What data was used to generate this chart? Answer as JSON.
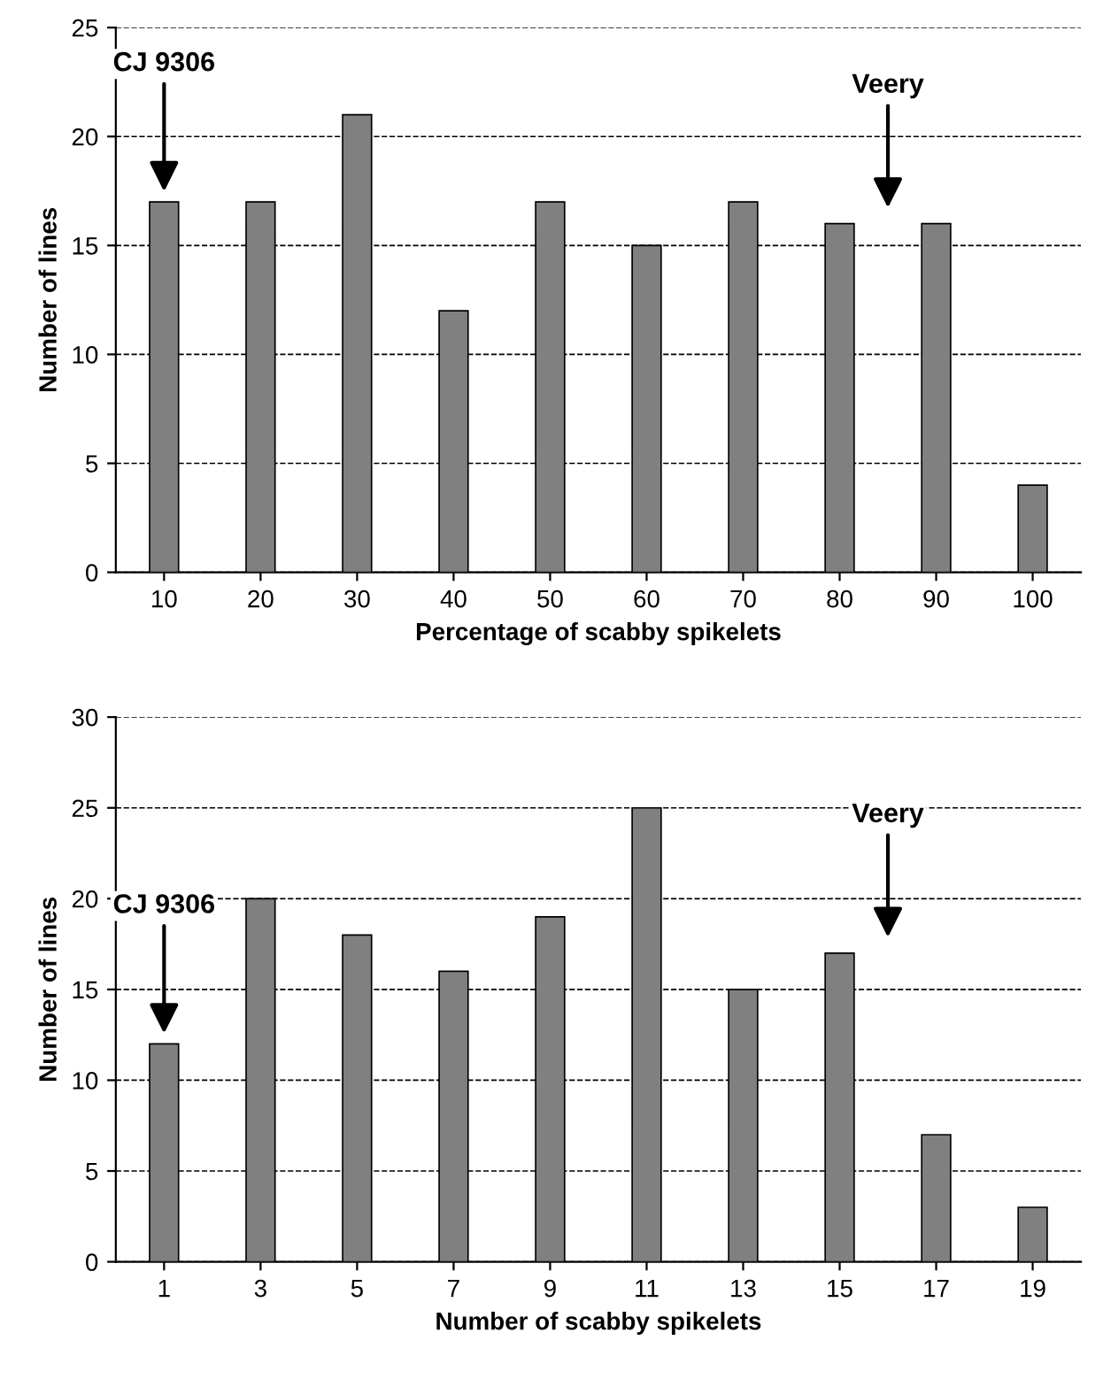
{
  "chart_data": [
    {
      "type": "bar",
      "xlabel": "Percentage of scabby spikelets",
      "ylabel": "Number of lines",
      "categories": [
        "10",
        "20",
        "30",
        "40",
        "50",
        "60",
        "70",
        "80",
        "90",
        "100"
      ],
      "values": [
        17,
        17,
        21,
        12,
        17,
        15,
        17,
        16,
        16,
        4
      ],
      "color": "#808080",
      "ylim": [
        0,
        25
      ],
      "yticks": [
        0,
        5,
        10,
        15,
        20,
        25
      ],
      "grid": "y",
      "annotations": [
        {
          "text": "CJ 9306",
          "x": "10",
          "y": 17
        },
        "Veery"
      ]
    },
    {
      "type": "bar",
      "xlabel": "Number of scabby spikelets",
      "ylabel": "Number of lines",
      "categories": [
        "1",
        "3",
        "5",
        "7",
        "9",
        "11",
        "13",
        "15",
        "17",
        "19"
      ],
      "values": [
        12,
        20,
        18,
        16,
        19,
        25,
        15,
        17,
        7,
        3
      ],
      "color": "#808080",
      "ylim": [
        0,
        30
      ],
      "yticks": [
        0,
        5,
        10,
        15,
        20,
        25,
        30
      ],
      "grid": "y",
      "annotations": [
        {
          "text": "CJ 9306",
          "x": "1",
          "y": 12
        },
        "Veery"
      ]
    }
  ]
}
